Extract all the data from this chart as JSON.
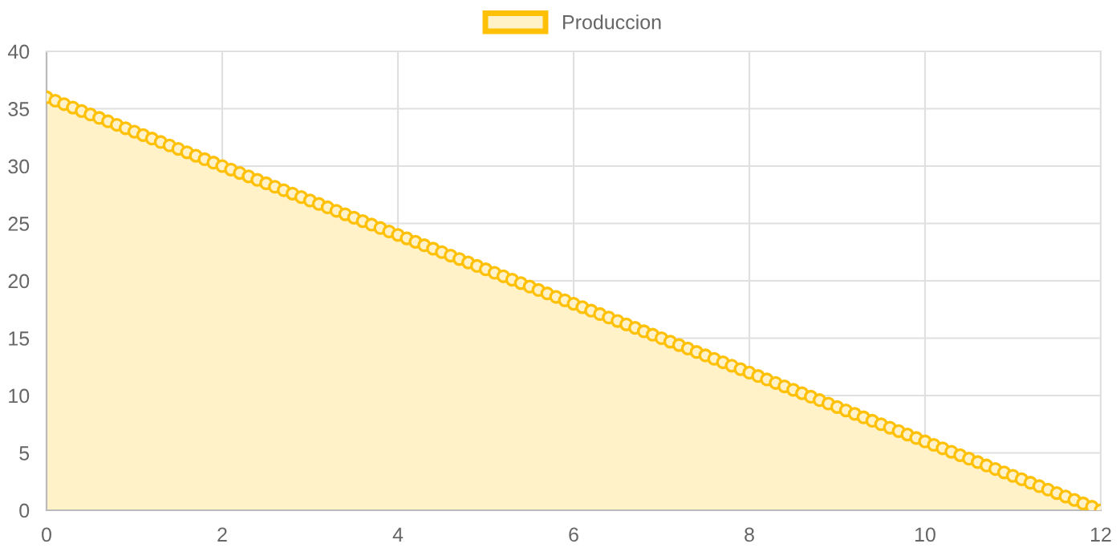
{
  "chart_data": {
    "type": "area",
    "x": [
      0,
      0.1,
      0.2,
      0.3,
      0.4,
      0.5,
      0.6,
      0.7,
      0.8,
      0.9,
      1,
      1.1,
      1.2,
      1.3,
      1.4,
      1.5,
      1.6,
      1.7,
      1.8,
      1.9,
      2,
      2.1,
      2.2,
      2.3,
      2.4,
      2.5,
      2.6,
      2.7,
      2.8,
      2.9,
      3,
      3.1,
      3.2,
      3.3,
      3.4,
      3.5,
      3.6,
      3.7,
      3.8,
      3.9,
      4,
      4.1,
      4.2,
      4.3,
      4.4,
      4.5,
      4.6,
      4.7,
      4.8,
      4.9,
      5,
      5.1,
      5.2,
      5.3,
      5.4,
      5.5,
      5.6,
      5.7,
      5.8,
      5.9,
      6,
      6.1,
      6.2,
      6.3,
      6.4,
      6.5,
      6.6,
      6.7,
      6.8,
      6.9,
      7,
      7.1,
      7.2,
      7.3,
      7.4,
      7.5,
      7.6,
      7.7,
      7.8,
      7.9,
      8,
      8.1,
      8.2,
      8.3,
      8.4,
      8.5,
      8.6,
      8.7,
      8.8,
      8.9,
      9,
      9.1,
      9.2,
      9.3,
      9.4,
      9.5,
      9.6,
      9.7,
      9.8,
      9.9,
      10,
      10.1,
      10.2,
      10.3,
      10.4,
      10.5,
      10.6,
      10.7,
      10.8,
      10.9,
      11,
      11.1,
      11.2,
      11.3,
      11.4,
      11.5,
      11.6,
      11.7,
      11.8,
      11.9,
      12
    ],
    "series": [
      {
        "name": "Produccion",
        "color": "#ffc107",
        "values": [
          36,
          35.7,
          35.4,
          35.1,
          34.8,
          34.5,
          34.2,
          33.9,
          33.6,
          33.3,
          33,
          32.7,
          32.4,
          32.1,
          31.8,
          31.5,
          31.2,
          30.9,
          30.6,
          30.3,
          30,
          29.7,
          29.4,
          29.1,
          28.8,
          28.5,
          28.2,
          27.9,
          27.6,
          27.3,
          27,
          26.7,
          26.4,
          26.1,
          25.8,
          25.5,
          25.2,
          24.9,
          24.6,
          24.3,
          24,
          23.7,
          23.4,
          23.1,
          22.8,
          22.5,
          22.2,
          21.9,
          21.6,
          21.3,
          21,
          20.7,
          20.4,
          20.1,
          19.8,
          19.5,
          19.2,
          18.9,
          18.6,
          18.3,
          18,
          17.7,
          17.4,
          17.1,
          16.8,
          16.5,
          16.2,
          15.9,
          15.6,
          15.3,
          15,
          14.7,
          14.4,
          14.1,
          13.8,
          13.5,
          13.2,
          12.9,
          12.6,
          12.3,
          12,
          11.7,
          11.4,
          11.1,
          10.8,
          10.5,
          10.2,
          9.9,
          9.6,
          9.3,
          9,
          8.7,
          8.4,
          8.1,
          7.8,
          7.5,
          7.2,
          6.9,
          6.6,
          6.3,
          6,
          5.7,
          5.4,
          5.1,
          4.8,
          4.5,
          4.2,
          3.9,
          3.6,
          3.3,
          3,
          2.7,
          2.4,
          2.1,
          1.8,
          1.5,
          1.2,
          0.9,
          0.6,
          0.3,
          0
        ]
      }
    ],
    "xlim": [
      0,
      12
    ],
    "xticks": [
      0,
      2,
      4,
      6,
      8,
      10,
      12
    ],
    "ylim": [
      0,
      40
    ],
    "yticks": [
      0,
      5,
      10,
      15,
      20,
      25,
      30,
      35,
      40
    ],
    "grid": true,
    "legend": "top",
    "marker": "circle"
  }
}
